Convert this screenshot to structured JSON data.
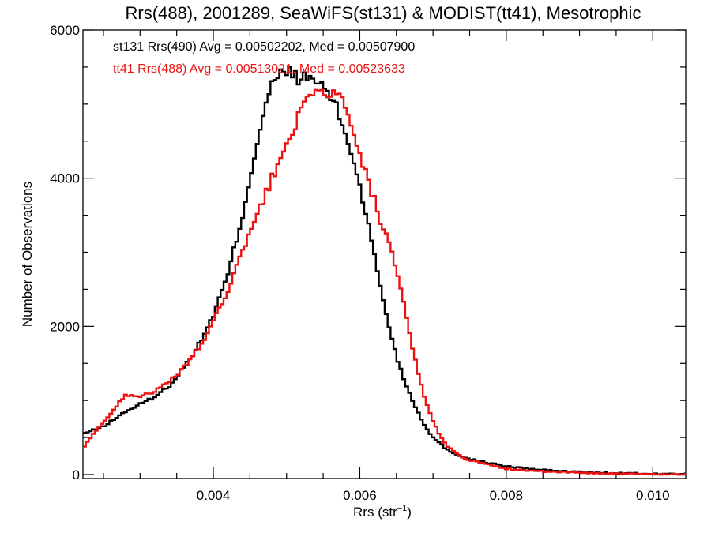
{
  "chart_data": {
    "type": "line",
    "title": "Rrs(488), 2001289, SeaWiFS(st131) & MODIST(tt41), Mesotrophic",
    "xlabel_main": "Rrs (str",
    "xlabel_sup": "−1",
    "xlabel_close": ")",
    "ylabel": "Number of Observations",
    "xlim": [
      0.00222,
      0.01045
    ],
    "ylim": [
      0,
      6000
    ],
    "x_ticks": [
      0.004,
      0.006,
      0.008,
      0.01
    ],
    "x_tick_labels": [
      "0.004",
      "0.006",
      "0.008",
      "0.010"
    ],
    "y_ticks": [
      0,
      2000,
      4000,
      6000
    ],
    "y_tick_labels": [
      "0",
      "2000",
      "4000",
      "6000"
    ],
    "bin_width": 4e-05,
    "series": [
      {
        "name": "st131 Rrs(490) Avg = 0.00502202, Med = 0.00507900",
        "color": "#000000",
        "points": [
          [
            0.00222,
            550
          ],
          [
            0.0025,
            650
          ],
          [
            0.0028,
            850
          ],
          [
            0.003,
            950
          ],
          [
            0.0032,
            1050
          ],
          [
            0.0034,
            1200
          ],
          [
            0.0036,
            1450
          ],
          [
            0.0038,
            1750
          ],
          [
            0.004,
            2150
          ],
          [
            0.0042,
            2700
          ],
          [
            0.0044,
            3500
          ],
          [
            0.0045,
            4000
          ],
          [
            0.0046,
            4500
          ],
          [
            0.0047,
            4950
          ],
          [
            0.0048,
            5250
          ],
          [
            0.0049,
            5380
          ],
          [
            0.005,
            5440
          ],
          [
            0.0051,
            5400
          ],
          [
            0.0052,
            5320
          ],
          [
            0.0053,
            5360
          ],
          [
            0.0054,
            5300
          ],
          [
            0.0055,
            5250
          ],
          [
            0.0056,
            5100
          ],
          [
            0.0057,
            4900
          ],
          [
            0.0058,
            4600
          ],
          [
            0.0059,
            4300
          ],
          [
            0.006,
            3900
          ],
          [
            0.0061,
            3450
          ],
          [
            0.0062,
            2950
          ],
          [
            0.0063,
            2450
          ],
          [
            0.0064,
            2000
          ],
          [
            0.0065,
            1600
          ],
          [
            0.0066,
            1300
          ],
          [
            0.0067,
            1050
          ],
          [
            0.0068,
            830
          ],
          [
            0.0069,
            640
          ],
          [
            0.007,
            500
          ],
          [
            0.0072,
            330
          ],
          [
            0.0074,
            240
          ],
          [
            0.0076,
            190
          ],
          [
            0.0078,
            150
          ],
          [
            0.008,
            110
          ],
          [
            0.0085,
            60
          ],
          [
            0.009,
            35
          ],
          [
            0.0095,
            18
          ],
          [
            0.01,
            10
          ],
          [
            0.01045,
            5
          ]
        ]
      },
      {
        "name": "tt41 Rrs(488) Avg = 0.00513021, Med = 0.00523633",
        "color": "#ee1111",
        "points": [
          [
            0.00222,
            350
          ],
          [
            0.0024,
            600
          ],
          [
            0.0026,
            820
          ],
          [
            0.0028,
            1080
          ],
          [
            0.003,
            1060
          ],
          [
            0.0032,
            1120
          ],
          [
            0.0034,
            1250
          ],
          [
            0.0036,
            1450
          ],
          [
            0.0038,
            1700
          ],
          [
            0.004,
            2050
          ],
          [
            0.0042,
            2500
          ],
          [
            0.0044,
            3000
          ],
          [
            0.0046,
            3500
          ],
          [
            0.0048,
            4000
          ],
          [
            0.0049,
            4200
          ],
          [
            0.005,
            4450
          ],
          [
            0.0051,
            4700
          ],
          [
            0.0052,
            4900
          ],
          [
            0.0053,
            5050
          ],
          [
            0.0054,
            5130
          ],
          [
            0.0055,
            5170
          ],
          [
            0.0056,
            5170
          ],
          [
            0.0057,
            5100
          ],
          [
            0.0058,
            4980
          ],
          [
            0.0059,
            4600
          ],
          [
            0.006,
            4300
          ],
          [
            0.0061,
            4000
          ],
          [
            0.0062,
            3700
          ],
          [
            0.0063,
            3350
          ],
          [
            0.0064,
            3100
          ],
          [
            0.0065,
            2750
          ],
          [
            0.0066,
            2300
          ],
          [
            0.0067,
            1800
          ],
          [
            0.0068,
            1350
          ],
          [
            0.0069,
            1000
          ],
          [
            0.007,
            720
          ],
          [
            0.0071,
            520
          ],
          [
            0.0072,
            380
          ],
          [
            0.0074,
            230
          ],
          [
            0.0076,
            170
          ],
          [
            0.0078,
            120
          ],
          [
            0.008,
            80
          ],
          [
            0.0085,
            40
          ],
          [
            0.009,
            25
          ],
          [
            0.0095,
            12
          ],
          [
            0.01,
            6
          ],
          [
            0.01045,
            3
          ]
        ]
      }
    ]
  }
}
